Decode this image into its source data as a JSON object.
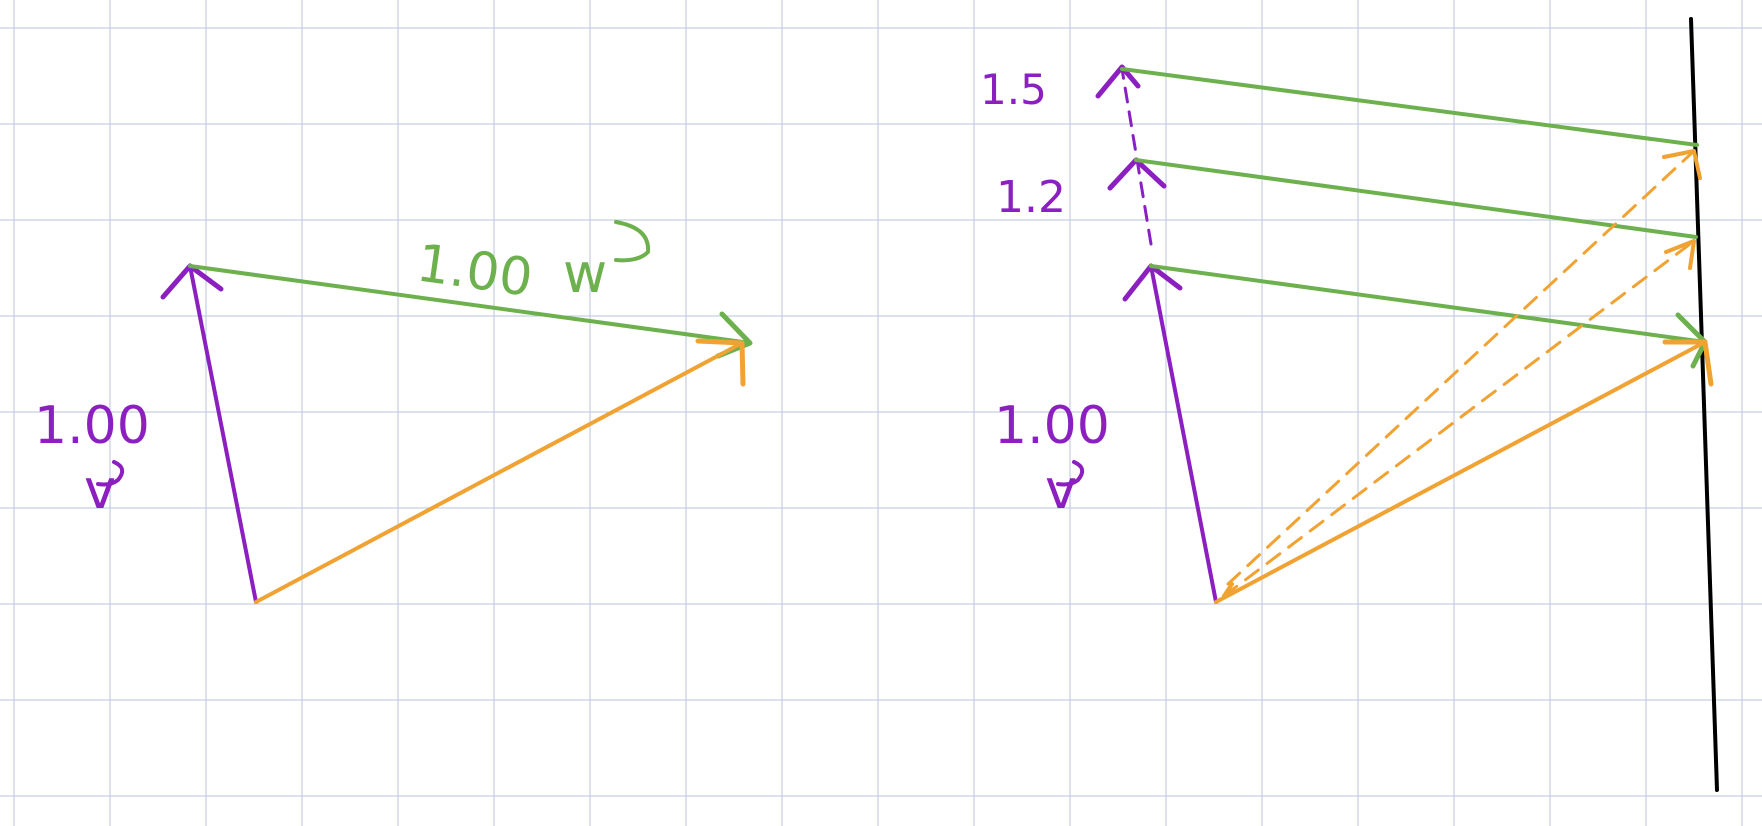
{
  "colors": {
    "grid": "#b7c4dc",
    "purple": "#8b1fbf",
    "green": "#6db14e",
    "orange": "#f0a232",
    "black": "#000000"
  },
  "left_diagram": {
    "v_label_coef": "1.00",
    "v_label_var": "v",
    "w_label_coef": "1.00",
    "w_label_var": "w"
  },
  "right_diagram": {
    "v_label_coef": "1.00",
    "v_label_var": "v",
    "scale_labels": [
      "1.2",
      "1.5"
    ]
  }
}
